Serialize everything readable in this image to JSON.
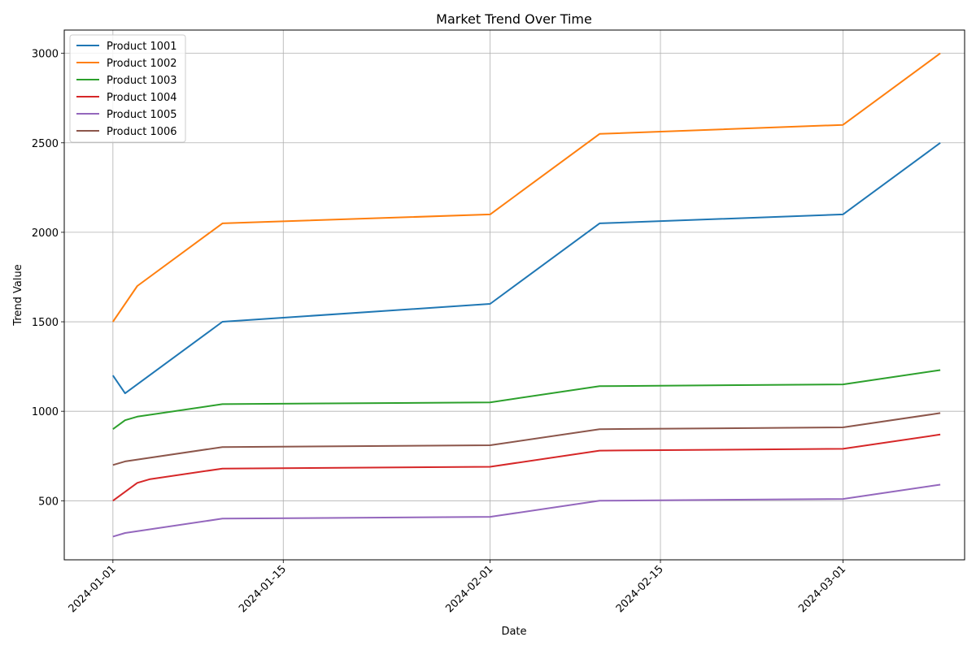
{
  "chart_data": {
    "type": "line",
    "title": "Market Trend Over Time",
    "xlabel": "Date",
    "ylabel": "Trend Value",
    "x": [
      "2024-01-01",
      "2024-01-02",
      "2024-01-03",
      "2024-01-04",
      "2024-01-10",
      "2024-02-01",
      "2024-02-10",
      "2024-03-01",
      "2024-03-09"
    ],
    "xlim": [
      "2023-12-28",
      "2024-03-11"
    ],
    "ylim": [
      170,
      3130
    ],
    "x_ticks": [
      "2024-01-01",
      "2024-01-15",
      "2024-02-01",
      "2024-02-15",
      "2024-03-01"
    ],
    "y_ticks": [
      500,
      1000,
      1500,
      2000,
      2500,
      3000
    ],
    "grid": true,
    "legend_position": "top-left",
    "series": [
      {
        "name": "Product 1001",
        "color": "#1f77b4",
        "points": [
          [
            "2024-01-01",
            1200
          ],
          [
            "2024-01-02",
            1100
          ],
          [
            "2024-01-10",
            1500
          ],
          [
            "2024-02-01",
            1600
          ],
          [
            "2024-02-10",
            2050
          ],
          [
            "2024-03-01",
            2100
          ],
          [
            "2024-03-09",
            2500
          ]
        ]
      },
      {
        "name": "Product 1002",
        "color": "#ff7f0e",
        "points": [
          [
            "2024-01-01",
            1500
          ],
          [
            "2024-01-03",
            1700
          ],
          [
            "2024-01-10",
            2050
          ],
          [
            "2024-02-01",
            2100
          ],
          [
            "2024-02-10",
            2550
          ],
          [
            "2024-03-01",
            2600
          ],
          [
            "2024-03-09",
            3000
          ]
        ]
      },
      {
        "name": "Product 1003",
        "color": "#2ca02c",
        "points": [
          [
            "2024-01-01",
            900
          ],
          [
            "2024-01-02",
            950
          ],
          [
            "2024-01-03",
            970
          ],
          [
            "2024-01-10",
            1040
          ],
          [
            "2024-02-01",
            1050
          ],
          [
            "2024-02-10",
            1140
          ],
          [
            "2024-03-01",
            1150
          ],
          [
            "2024-03-09",
            1230
          ]
        ]
      },
      {
        "name": "Product 1004",
        "color": "#d62728",
        "points": [
          [
            "2024-01-01",
            500
          ],
          [
            "2024-01-03",
            600
          ],
          [
            "2024-01-04",
            620
          ],
          [
            "2024-01-10",
            680
          ],
          [
            "2024-02-01",
            690
          ],
          [
            "2024-02-10",
            780
          ],
          [
            "2024-03-01",
            790
          ],
          [
            "2024-03-09",
            870
          ]
        ]
      },
      {
        "name": "Product 1005",
        "color": "#9467bd",
        "points": [
          [
            "2024-01-01",
            300
          ],
          [
            "2024-01-02",
            320
          ],
          [
            "2024-01-10",
            400
          ],
          [
            "2024-02-01",
            410
          ],
          [
            "2024-02-10",
            500
          ],
          [
            "2024-03-01",
            510
          ],
          [
            "2024-03-09",
            590
          ]
        ]
      },
      {
        "name": "Product 1006",
        "color": "#8c564b",
        "points": [
          [
            "2024-01-01",
            700
          ],
          [
            "2024-01-02",
            720
          ],
          [
            "2024-01-10",
            800
          ],
          [
            "2024-02-01",
            810
          ],
          [
            "2024-02-10",
            900
          ],
          [
            "2024-03-01",
            910
          ],
          [
            "2024-03-09",
            990
          ]
        ]
      }
    ]
  }
}
